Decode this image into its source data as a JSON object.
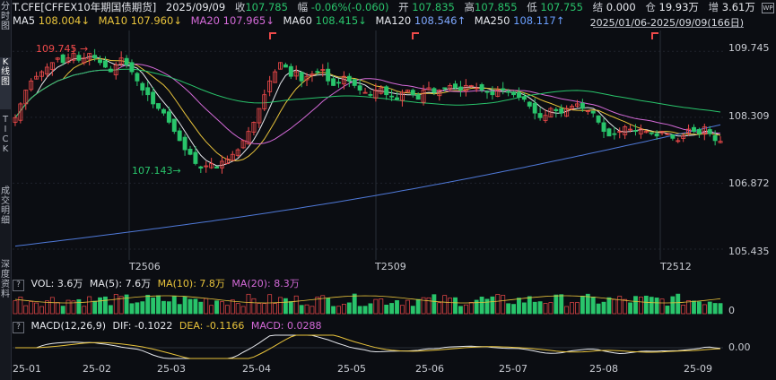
{
  "sidebar": {
    "tabs": [
      "分\n时\n图",
      "K\n线\n图",
      "T\nI\nC\nK",
      "成\n交\n明\n细",
      "深\n度\n资\n料"
    ]
  },
  "header": {
    "symbol": "T.CFE[CFFEX10年期国债期货]",
    "date": "2025/09/09",
    "close_label": "收",
    "close": "107.785",
    "change_label": "幅",
    "change": "-0.06%(-0.060)",
    "open_label": "开",
    "open": "107.835",
    "high_label": "高",
    "high": "107.855",
    "low_label": "低",
    "low": "107.755",
    "settle_label": "结",
    "settle": "0.000",
    "oi_label": "仓",
    "oi": "19.93万",
    "add_label": "增",
    "add": "3.61万",
    "more": "增"
  },
  "ma": {
    "ma5": "MA5",
    "ma5_val": "108.004↓",
    "ma10": "MA10",
    "ma10_val": "107.960↓",
    "ma20": "MA20",
    "ma20_val": "107.965↓",
    "ma60": "MA60",
    "ma60_val": "108.415↓",
    "ma120": "MA120",
    "ma120_val": "108.546↑",
    "ma250": "MA250",
    "ma250_val": "108.117↑"
  },
  "range": "2025/01/06-2025/09/09(166日)",
  "settings_icon": "WP",
  "price_axis": [
    "109.745",
    "108.309",
    "106.872",
    "105.435"
  ],
  "high_label": "109.745",
  "low_label": "107.143",
  "contracts": [
    "T2506",
    "T2509",
    "T2512"
  ],
  "volume": {
    "q": "?",
    "vol": "VOL: 3.6万",
    "ma5": "MA(5): 7.6万",
    "ma10": "MA(10): 7.8万",
    "ma20": "MA(20): 8.3万",
    "zero": "0"
  },
  "macd": {
    "q": "?",
    "title": "MACD(12,26,9)",
    "dif": "DIF: -0.1022",
    "dea": "DEA: -0.1166",
    "macd": "MACD: 0.0288",
    "zero": "0.00"
  },
  "xaxis": [
    "25-01",
    "25-02",
    "25-03",
    "25-04",
    "25-05",
    "25-06",
    "25-07",
    "25-08",
    "25-09"
  ],
  "colors": {
    "up": "#ef4a4a",
    "down": "#29c46b",
    "ma5": "#e7e9ee",
    "ma10": "#e8c33b",
    "ma20": "#d46ad8",
    "ma60": "#29c46b",
    "ma120": "#62b58f",
    "ma250": "#4f79d8"
  },
  "chart_data": {
    "type": "candlestick",
    "y_range": [
      105.2,
      110.2
    ],
    "closes": [
      108.3,
      108.6,
      108.9,
      109.1,
      109.2,
      109.3,
      109.4,
      109.5,
      109.6,
      109.5,
      109.6,
      109.7,
      109.55,
      109.6,
      109.7,
      109.6,
      109.5,
      109.4,
      109.3,
      109.45,
      109.6,
      109.45,
      109.3,
      109.1,
      108.9,
      108.8,
      108.6,
      108.5,
      108.4,
      108.2,
      108.0,
      107.8,
      107.6,
      107.5,
      107.3,
      107.2,
      107.25,
      107.3,
      107.2,
      107.35,
      107.4,
      107.5,
      107.6,
      107.8,
      108.0,
      108.2,
      108.5,
      108.8,
      109.1,
      109.3,
      109.5,
      109.4,
      109.2,
      109.3,
      109.1,
      109.2,
      109.25,
      109.3,
      109.35,
      109.1,
      109.0,
      109.05,
      109.2,
      109.1,
      109.0,
      108.9,
      108.85,
      108.8,
      108.9,
      108.95,
      108.8,
      108.75,
      108.7,
      108.85,
      108.9,
      108.8,
      108.7,
      108.9,
      108.95,
      108.85,
      108.9,
      108.95,
      109.0,
      108.95,
      108.9,
      109.0,
      109.0,
      108.95,
      108.9,
      108.85,
      108.8,
      108.9,
      108.9,
      108.85,
      108.8,
      108.75,
      108.7,
      108.55,
      108.4,
      108.3,
      108.35,
      108.5,
      108.45,
      108.4,
      108.5,
      108.55,
      108.6,
      108.5,
      108.45,
      108.4,
      108.2,
      108.0,
      107.9,
      107.95,
      108.0,
      108.1,
      108.05,
      108.0,
      108.05,
      108.0,
      107.95,
      107.9,
      108.0,
      107.95,
      107.85,
      107.8,
      107.9,
      108.05,
      108.0,
      107.95,
      108.1,
      107.95,
      107.8,
      107.785
    ]
  }
}
